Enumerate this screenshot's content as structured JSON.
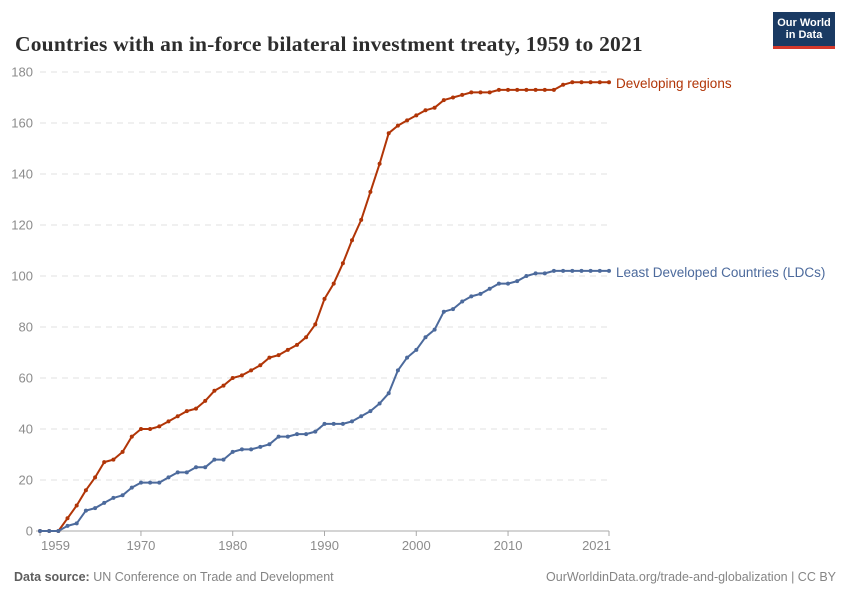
{
  "header": {
    "title": "Countries with an in-force bilateral investment treaty, 1959 to 2021",
    "logo": {
      "line1": "Our World",
      "line2": "in Data"
    }
  },
  "footer": {
    "source_label": "Data source:",
    "source_value": " UN Conference on Trade and Development",
    "rights": "OurWorldinData.org/trade-and-globalization | CC BY"
  },
  "colors": {
    "developing_regions": "#b13507",
    "ldcs": "#4c6a9c",
    "grid": "#e2e2e2",
    "axis_line": "#a9a9a9",
    "tick_text": "#8c8c8c",
    "title_text": "#2d2d2d",
    "logo_bg": "#1a3a63",
    "logo_bar": "#d5382b"
  },
  "chart_data": {
    "type": "line",
    "title": "Countries with an in-force bilateral investment treaty, 1959 to 2021",
    "xlabel": "",
    "ylabel": "",
    "xlim": [
      1959,
      2021
    ],
    "ylim": [
      0,
      180
    ],
    "grid": "horizontal-dashed",
    "legend_position": "end-of-line-labels",
    "xticks": [
      1959,
      1970,
      1980,
      1990,
      2000,
      2010,
      2021
    ],
    "yticks": [
      0,
      20,
      40,
      60,
      80,
      100,
      120,
      140,
      160,
      180
    ],
    "x": [
      1959,
      1960,
      1961,
      1962,
      1963,
      1964,
      1965,
      1966,
      1967,
      1968,
      1969,
      1970,
      1971,
      1972,
      1973,
      1974,
      1975,
      1976,
      1977,
      1978,
      1979,
      1980,
      1981,
      1982,
      1983,
      1984,
      1985,
      1986,
      1987,
      1988,
      1989,
      1990,
      1991,
      1992,
      1993,
      1994,
      1995,
      1996,
      1997,
      1998,
      1999,
      2000,
      2001,
      2002,
      2003,
      2004,
      2005,
      2006,
      2007,
      2008,
      2009,
      2010,
      2011,
      2012,
      2013,
      2014,
      2015,
      2016,
      2017,
      2018,
      2019,
      2020,
      2021
    ],
    "series": [
      {
        "name": "Developing regions",
        "color": "#b13507",
        "values": [
          0,
          0,
          0,
          5,
          10,
          16,
          21,
          27,
          28,
          31,
          37,
          40,
          40,
          41,
          43,
          45,
          47,
          48,
          51,
          55,
          57,
          60,
          61,
          63,
          65,
          68,
          69,
          71,
          73,
          76,
          81,
          91,
          97,
          105,
          114,
          122,
          133,
          144,
          156,
          159,
          161,
          163,
          165,
          166,
          169,
          170,
          171,
          172,
          172,
          172,
          173,
          173,
          173,
          173,
          173,
          173,
          173,
          175,
          176,
          176,
          176,
          176,
          176
        ]
      },
      {
        "name": "Least Developed Countries (LDCs)",
        "color": "#4c6a9c",
        "values": [
          0,
          0,
          0,
          2,
          3,
          8,
          9,
          11,
          13,
          14,
          17,
          19,
          19,
          19,
          21,
          23,
          23,
          25,
          25,
          28,
          28,
          31,
          32,
          32,
          33,
          34,
          37,
          37,
          38,
          38,
          39,
          42,
          42,
          42,
          43,
          45,
          47,
          50,
          54,
          63,
          68,
          71,
          76,
          79,
          86,
          87,
          90,
          92,
          93,
          95,
          97,
          97,
          98,
          100,
          101,
          101,
          102,
          102,
          102,
          102,
          102,
          102,
          102
        ]
      }
    ]
  }
}
